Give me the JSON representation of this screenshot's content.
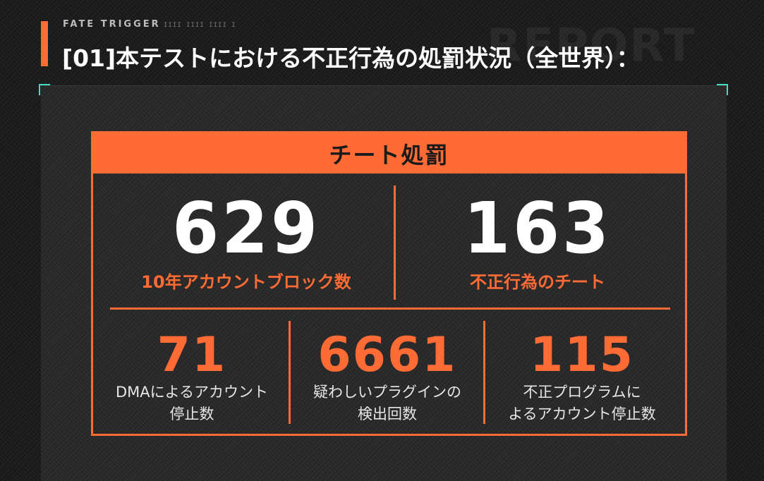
{
  "header": {
    "brand": "FATE TRIGGER",
    "brand_ticks": "IIII IIII IIII I",
    "heading_index": "[01]",
    "heading_text": "本テストにおける不正行為の処罰状況（全世界）：",
    "watermark": "REPORT"
  },
  "card": {
    "title": "チート処罰",
    "top_stats": [
      {
        "value": "629",
        "label": "10年アカウントブロック数"
      },
      {
        "value": "163",
        "label": "不正行為のチート"
      }
    ],
    "bottom_stats": [
      {
        "value": "71",
        "label_line1": "DMAによるアカウント",
        "label_line2": "停止数"
      },
      {
        "value": "6661",
        "label_line1": "疑わしいプラグインの",
        "label_line2": "検出回数"
      },
      {
        "value": "115",
        "label_line1": "不正プログラムに",
        "label_line2": "よるアカウント停止数"
      }
    ]
  },
  "colors": {
    "accent": "#ff6b35",
    "corner": "#3ee0c0",
    "background": "#1c1c1c"
  },
  "icons": [
    "corner-bracket-top-left-icon",
    "corner-bracket-top-right-icon"
  ]
}
